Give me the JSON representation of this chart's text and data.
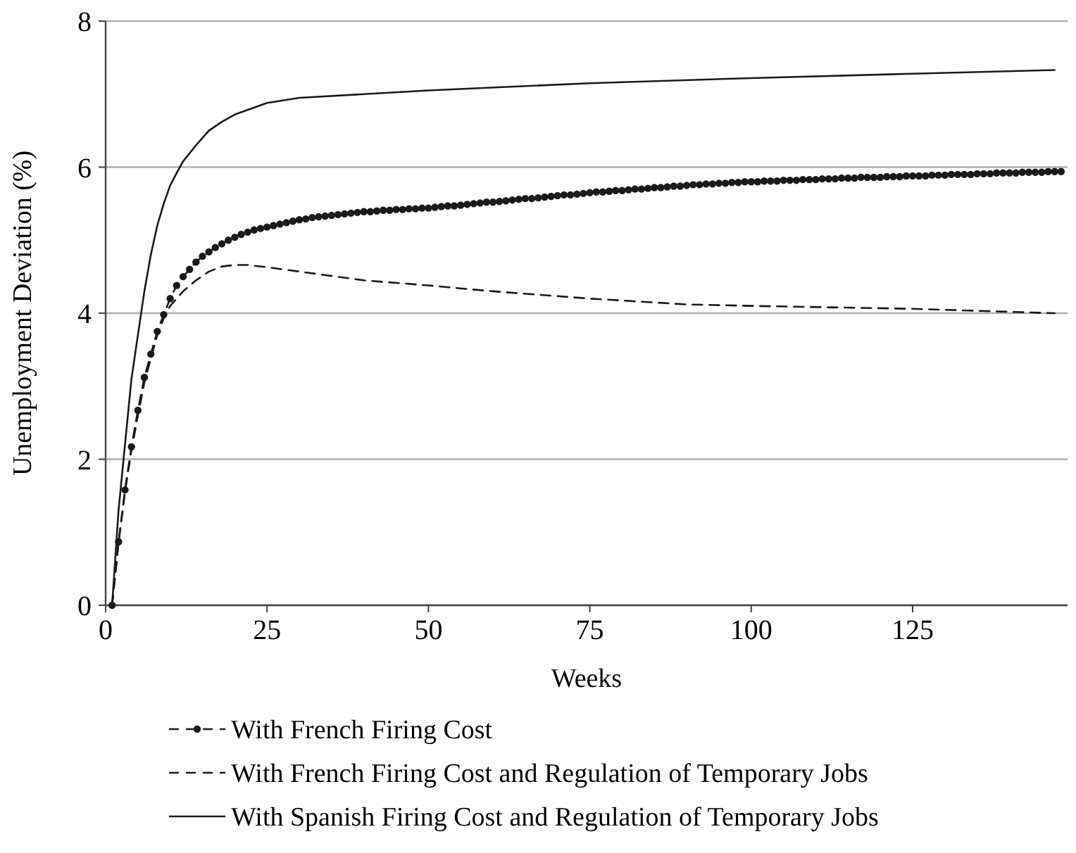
{
  "chart_data": {
    "type": "line",
    "xlabel": "Weeks",
    "ylabel": "Unemployment Deviation (%)",
    "xlim": [
      0,
      149
    ],
    "xticks": [
      0,
      25,
      50,
      75,
      100,
      125
    ],
    "ylim": [
      0,
      8
    ],
    "yticks": [
      0,
      2,
      4,
      6,
      8
    ],
    "grid": "y",
    "legend": "bottom",
    "x": [
      1,
      2,
      3,
      4,
      5,
      6,
      7,
      8,
      9,
      10,
      11,
      12,
      13,
      14,
      15,
      16,
      17,
      18,
      19,
      20,
      21,
      22,
      23,
      24,
      25,
      26,
      27,
      28,
      29,
      30,
      31,
      32,
      33,
      34,
      35,
      36,
      37,
      38,
      39,
      40,
      41,
      42,
      43,
      44,
      45,
      46,
      47,
      48,
      49,
      50,
      51,
      52,
      53,
      54,
      55,
      56,
      57,
      58,
      59,
      60,
      61,
      62,
      63,
      64,
      65,
      66,
      67,
      68,
      69,
      70,
      71,
      72,
      73,
      74,
      75,
      76,
      77,
      78,
      79,
      80,
      81,
      82,
      83,
      84,
      85,
      86,
      87,
      88,
      89,
      90,
      91,
      92,
      93,
      94,
      95,
      96,
      97,
      98,
      99,
      100,
      101,
      102,
      103,
      104,
      105,
      106,
      107,
      108,
      109,
      110,
      111,
      112,
      113,
      114,
      115,
      116,
      117,
      118,
      119,
      120,
      121,
      122,
      123,
      124,
      125,
      126,
      127,
      128,
      129,
      130,
      131,
      132,
      133,
      134,
      135,
      136,
      137,
      138,
      139,
      140,
      141,
      142,
      143,
      144,
      145,
      146,
      147,
      148
    ],
    "series": [
      {
        "name": "With French Firing Cost",
        "color": "#1a1a1a",
        "marker": "circle",
        "line_style": "dashed",
        "values": [
          0,
          0.87,
          1.58,
          2.17,
          2.67,
          3.12,
          3.44,
          3.75,
          3.98,
          4.2,
          4.38,
          4.5,
          4.6,
          4.7,
          4.78,
          4.84,
          4.9,
          4.95,
          5.0,
          5.04,
          5.08,
          5.11,
          5.14,
          5.16,
          5.18,
          5.2,
          5.22,
          5.24,
          5.26,
          5.28,
          5.29,
          5.31,
          5.32,
          5.33,
          5.34,
          5.35,
          5.36,
          5.37,
          5.38,
          5.39,
          5.39,
          5.4,
          5.41,
          5.41,
          5.42,
          5.42,
          5.43,
          5.43,
          5.44,
          5.44,
          5.45,
          5.46,
          5.47,
          5.47,
          5.48,
          5.49,
          5.5,
          5.51,
          5.52,
          5.52,
          5.53,
          5.54,
          5.55,
          5.56,
          5.57,
          5.57,
          5.58,
          5.59,
          5.6,
          5.61,
          5.62,
          5.62,
          5.63,
          5.64,
          5.65,
          5.66,
          5.66,
          5.67,
          5.68,
          5.68,
          5.69,
          5.7,
          5.7,
          5.71,
          5.72,
          5.72,
          5.73,
          5.74,
          5.74,
          5.75,
          5.76,
          5.76,
          5.77,
          5.77,
          5.78,
          5.78,
          5.79,
          5.79,
          5.8,
          5.8,
          5.8,
          5.81,
          5.81,
          5.81,
          5.82,
          5.82,
          5.82,
          5.83,
          5.83,
          5.83,
          5.84,
          5.84,
          5.84,
          5.85,
          5.85,
          5.85,
          5.86,
          5.86,
          5.86,
          5.86,
          5.87,
          5.87,
          5.87,
          5.88,
          5.88,
          5.88,
          5.88,
          5.89,
          5.89,
          5.89,
          5.9,
          5.9,
          5.9,
          5.9,
          5.91,
          5.91,
          5.91,
          5.92,
          5.92,
          5.92,
          5.92,
          5.93,
          5.93,
          5.93,
          5.93,
          5.94,
          5.94,
          5.94
        ]
      },
      {
        "name": "With French Firing Cost and Regulation of Temporary Jobs",
        "color": "#1a1a1a",
        "marker": "none",
        "line_style": "dashed",
        "x": [
          1,
          2,
          3,
          4,
          5,
          6,
          7,
          8,
          9,
          10,
          12,
          14,
          16,
          18,
          20,
          22,
          25,
          30,
          40,
          50,
          60,
          75,
          90,
          100,
          125,
          147
        ],
        "values": [
          0,
          0.85,
          1.55,
          2.12,
          2.6,
          3.05,
          3.38,
          3.7,
          3.93,
          4.1,
          4.3,
          4.45,
          4.57,
          4.64,
          4.66,
          4.66,
          4.63,
          4.57,
          4.45,
          4.38,
          4.3,
          4.2,
          4.12,
          4.1,
          4.06,
          4.0
        ]
      },
      {
        "name": "With Spanish Firing Cost and Regulation of Temporary Jobs",
        "color": "#1a1a1a",
        "marker": "none",
        "line_style": "solid",
        "x": [
          1,
          2,
          3,
          4,
          5,
          6,
          7,
          8,
          9,
          10,
          11,
          12,
          14,
          16,
          18,
          20,
          25,
          30,
          40,
          50,
          75,
          100,
          125,
          147
        ],
        "values": [
          0,
          1.3,
          2.2,
          3.1,
          3.7,
          4.3,
          4.8,
          5.2,
          5.5,
          5.75,
          5.92,
          6.08,
          6.3,
          6.5,
          6.62,
          6.72,
          6.88,
          6.95,
          7.0,
          7.05,
          7.15,
          7.22,
          7.28,
          7.33
        ]
      }
    ]
  }
}
